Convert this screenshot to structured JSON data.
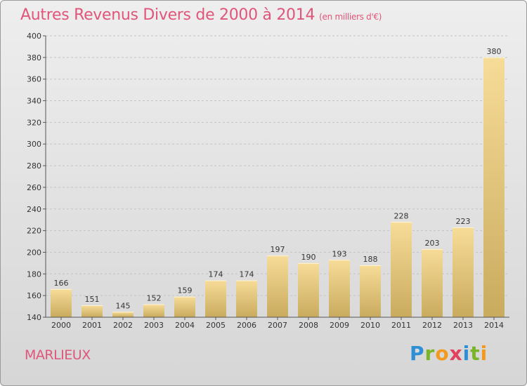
{
  "header": {
    "title": "Autres Revenus Divers de 2000 à 2014",
    "unit": "(en milliers d'€)"
  },
  "footer": {
    "city": "MARLIEUX",
    "brand": [
      "P",
      "r",
      "o",
      "x",
      "i",
      "t",
      "i"
    ]
  },
  "chart_data": {
    "type": "bar",
    "title": "Autres Revenus Divers de 2000 à 2014",
    "subtitle": "(en milliers d'€)",
    "categories": [
      "2000",
      "2001",
      "2002",
      "2003",
      "2004",
      "2005",
      "2006",
      "2007",
      "2008",
      "2009",
      "2010",
      "2011",
      "2012",
      "2013",
      "2014"
    ],
    "values": [
      166,
      151,
      145,
      152,
      159,
      174,
      174,
      197,
      190,
      193,
      188,
      228,
      203,
      223,
      380
    ],
    "ylim": [
      140,
      400
    ],
    "yticks": [
      140,
      160,
      180,
      200,
      220,
      240,
      260,
      280,
      300,
      320,
      340,
      360,
      380,
      400
    ],
    "grid": true,
    "bar_color": "#e8c872"
  }
}
